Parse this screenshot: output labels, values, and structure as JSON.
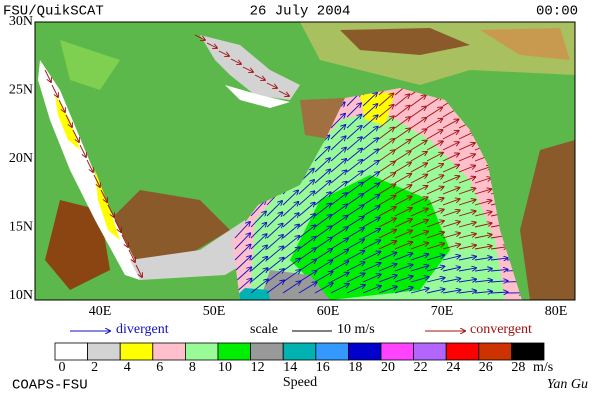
{
  "header": {
    "left": "FSU/QuikSCAT",
    "center": "26 July 2004",
    "right": "00:00"
  },
  "map": {
    "lat_labels": [
      "30N",
      "25N",
      "20N",
      "15N",
      "10N"
    ],
    "lon_labels": [
      "40E",
      "50E",
      "60E",
      "70E",
      "80E"
    ]
  },
  "legend": {
    "divergent": "divergent",
    "scale": "scale",
    "scale_value": "10 m/s",
    "convergent": "convergent"
  },
  "colorbar": {
    "ticks": [
      "0",
      "2",
      "4",
      "6",
      "8",
      "10",
      "12",
      "14",
      "16",
      "18",
      "20",
      "22",
      "24",
      "26",
      "28"
    ],
    "unit": "m/s",
    "title": "Speed",
    "colors": [
      "#ffffff",
      "#d3d3d3",
      "#ffff00",
      "#ffc0cb",
      "#98fb98",
      "#00ee00",
      "#999999",
      "#00b2b2",
      "#3399ff",
      "#0000cc",
      "#ff44ff",
      "#b266ff",
      "#ff0000",
      "#cc3300",
      "#000000"
    ]
  },
  "footer": {
    "left": "COAPS-FSU",
    "right": "Yan Gu"
  }
}
